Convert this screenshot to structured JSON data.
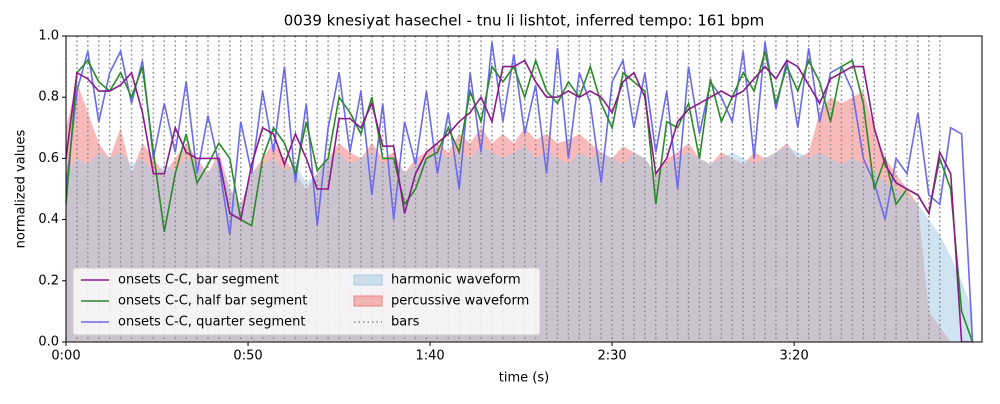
{
  "chart_data": {
    "type": "line",
    "title": "0039 knesiyat hasechel - tnu li lishtot, inferred tempo: 161 bpm",
    "x_label": "time (s)",
    "y_label": "normalized values",
    "xlim": [
      0,
      251.6
    ],
    "ylim": [
      0,
      1
    ],
    "xticks": [
      {
        "value": 0,
        "label": "0:00"
      },
      {
        "value": 50,
        "label": "0:50"
      },
      {
        "value": 100,
        "label": "1:40"
      },
      {
        "value": 150,
        "label": "2:30"
      },
      {
        "value": 200,
        "label": "3:20"
      }
    ],
    "yticks": [
      {
        "value": 0,
        "label": "0.0"
      },
      {
        "value": 0.2,
        "label": "0.2"
      },
      {
        "value": 0.4,
        "label": "0.4"
      },
      {
        "value": 0.6,
        "label": "0.6"
      },
      {
        "value": 0.8,
        "label": "0.8"
      },
      {
        "value": 1,
        "label": "1.0"
      }
    ],
    "legend": "lower left",
    "x": [
      0,
      3,
      6,
      9,
      12,
      15,
      18,
      21,
      24,
      27,
      30,
      33,
      36,
      39,
      42,
      45,
      48,
      51,
      54,
      57,
      60,
      63,
      66,
      69,
      72,
      75,
      78,
      81,
      84,
      87,
      90,
      93,
      96,
      99,
      102,
      105,
      108,
      111,
      114,
      117,
      120,
      123,
      126,
      129,
      132,
      135,
      138,
      141,
      144,
      147,
      150,
      153,
      156,
      159,
      162,
      165,
      168,
      171,
      174,
      177,
      180,
      183,
      186,
      189,
      192,
      195,
      198,
      201,
      204,
      207,
      210,
      213,
      216,
      219,
      222,
      225,
      228,
      231,
      234,
      237,
      240,
      243,
      246,
      249
    ],
    "series": [
      {
        "name": "onsets C-C, bar segment",
        "kind": "line",
        "color": "#8b1a8b",
        "values": [
          0.6,
          0.88,
          0.86,
          0.82,
          0.82,
          0.84,
          0.88,
          0.75,
          0.55,
          0.55,
          0.7,
          0.62,
          0.6,
          0.6,
          0.6,
          0.42,
          0.4,
          0.58,
          0.7,
          0.68,
          0.58,
          0.68,
          0.6,
          0.5,
          0.5,
          0.73,
          0.73,
          0.7,
          0.78,
          0.64,
          0.64,
          0.42,
          0.55,
          0.62,
          0.65,
          0.68,
          0.72,
          0.75,
          0.8,
          0.72,
          0.9,
          0.9,
          0.92,
          0.85,
          0.8,
          0.8,
          0.82,
          0.8,
          0.82,
          0.8,
          0.75,
          0.85,
          0.88,
          0.8,
          0.55,
          0.6,
          0.72,
          0.76,
          0.78,
          0.8,
          0.82,
          0.8,
          0.82,
          0.86,
          0.9,
          0.86,
          0.92,
          0.9,
          0.84,
          0.78,
          0.86,
          0.88,
          0.9,
          0.9,
          0.7,
          0.58,
          0.52,
          0.5,
          0.48,
          0.42,
          0.62,
          0.55,
          0.0,
          0.0
        ]
      },
      {
        "name": "onsets C-C, half bar segment",
        "kind": "line",
        "color": "#2a8a2a",
        "values": [
          0.45,
          0.88,
          0.92,
          0.85,
          0.82,
          0.88,
          0.8,
          0.9,
          0.62,
          0.36,
          0.55,
          0.68,
          0.52,
          0.58,
          0.65,
          0.6,
          0.4,
          0.38,
          0.6,
          0.7,
          0.65,
          0.55,
          0.72,
          0.56,
          0.6,
          0.8,
          0.75,
          0.68,
          0.8,
          0.6,
          0.6,
          0.45,
          0.5,
          0.6,
          0.62,
          0.7,
          0.62,
          0.82,
          0.72,
          0.9,
          0.85,
          0.9,
          0.8,
          0.92,
          0.82,
          0.78,
          0.85,
          0.8,
          0.9,
          0.78,
          0.7,
          0.88,
          0.85,
          0.82,
          0.45,
          0.72,
          0.7,
          0.78,
          0.6,
          0.86,
          0.72,
          0.8,
          0.88,
          0.82,
          0.95,
          0.78,
          0.9,
          0.82,
          0.92,
          0.85,
          0.72,
          0.9,
          0.92,
          0.78,
          0.5,
          0.6,
          0.45,
          0.5,
          0.48,
          0.42,
          0.6,
          0.5,
          0.1,
          0.0
        ]
      },
      {
        "name": "onsets C-C, quarter segment",
        "kind": "line",
        "color": "#6b6bea",
        "values": [
          0.5,
          0.82,
          0.95,
          0.72,
          0.88,
          0.95,
          0.78,
          0.92,
          0.6,
          0.78,
          0.62,
          0.85,
          0.55,
          0.74,
          0.58,
          0.35,
          0.72,
          0.55,
          0.82,
          0.62,
          0.9,
          0.52,
          0.78,
          0.38,
          0.7,
          0.88,
          0.62,
          0.82,
          0.48,
          0.78,
          0.4,
          0.72,
          0.58,
          0.82,
          0.55,
          0.75,
          0.5,
          0.88,
          0.62,
          0.98,
          0.72,
          0.94,
          0.68,
          0.84,
          0.55,
          0.96,
          0.6,
          0.88,
          0.78,
          0.52,
          0.85,
          0.92,
          0.7,
          0.88,
          0.62,
          0.82,
          0.5,
          0.9,
          0.68,
          0.85,
          0.8,
          0.72,
          0.95,
          0.6,
          0.98,
          0.76,
          0.92,
          0.7,
          0.96,
          0.72,
          0.88,
          0.9,
          0.82,
          0.6,
          0.52,
          0.4,
          0.6,
          0.55,
          0.75,
          0.48,
          0.45,
          0.7,
          0.68,
          0.0
        ]
      },
      {
        "name": "harmonic waveform",
        "kind": "area",
        "color": "#a9cce3",
        "values": [
          0.55,
          0.6,
          0.58,
          0.62,
          0.6,
          0.62,
          0.58,
          0.6,
          0.55,
          0.58,
          0.56,
          0.6,
          0.58,
          0.55,
          0.6,
          0.5,
          0.45,
          0.55,
          0.58,
          0.6,
          0.56,
          0.58,
          0.52,
          0.55,
          0.6,
          0.62,
          0.58,
          0.6,
          0.62,
          0.58,
          0.6,
          0.55,
          0.58,
          0.6,
          0.62,
          0.6,
          0.62,
          0.6,
          0.64,
          0.62,
          0.6,
          0.62,
          0.64,
          0.6,
          0.62,
          0.6,
          0.58,
          0.62,
          0.6,
          0.62,
          0.6,
          0.58,
          0.62,
          0.6,
          0.55,
          0.58,
          0.6,
          0.62,
          0.6,
          0.58,
          0.6,
          0.62,
          0.6,
          0.58,
          0.6,
          0.62,
          0.64,
          0.62,
          0.6,
          0.62,
          0.6,
          0.58,
          0.6,
          0.58,
          0.56,
          0.52,
          0.5,
          0.48,
          0.45,
          0.4,
          0.35,
          0.28,
          0.2,
          0.1
        ]
      },
      {
        "name": "percussive waveform",
        "kind": "area",
        "color": "#f08080",
        "values": [
          0.7,
          0.85,
          0.75,
          0.65,
          0.6,
          0.7,
          0.55,
          0.65,
          0.6,
          0.55,
          0.6,
          0.65,
          0.6,
          0.55,
          0.62,
          0.5,
          0.45,
          0.55,
          0.6,
          0.65,
          0.6,
          0.55,
          0.5,
          0.55,
          0.6,
          0.65,
          0.62,
          0.6,
          0.65,
          0.6,
          0.62,
          0.55,
          0.6,
          0.62,
          0.65,
          0.62,
          0.68,
          0.65,
          0.7,
          0.65,
          0.68,
          0.65,
          0.7,
          0.66,
          0.68,
          0.65,
          0.66,
          0.68,
          0.65,
          0.62,
          0.6,
          0.64,
          0.62,
          0.6,
          0.55,
          0.6,
          0.62,
          0.65,
          0.6,
          0.58,
          0.62,
          0.6,
          0.58,
          0.62,
          0.6,
          0.62,
          0.65,
          0.6,
          0.62,
          0.75,
          0.8,
          0.78,
          0.8,
          0.82,
          0.7,
          0.6,
          0.55,
          0.5,
          0.45,
          0.1,
          0.05,
          0.0,
          0.0,
          0.0
        ]
      },
      {
        "name": "bars",
        "kind": "vlines",
        "color": "#888888",
        "x": [
          0,
          3,
          6,
          9,
          12,
          15,
          18,
          21,
          24,
          27,
          30,
          33,
          36,
          39,
          42,
          45,
          48,
          51,
          54,
          57,
          60,
          63,
          66,
          69,
          72,
          75,
          78,
          81,
          84,
          87,
          90,
          93,
          96,
          99,
          102,
          105,
          108,
          111,
          114,
          117,
          120,
          123,
          126,
          129,
          132,
          135,
          138,
          141,
          144,
          147,
          150,
          153,
          156,
          159,
          162,
          165,
          168,
          171,
          174,
          177,
          180,
          183,
          186,
          189,
          192,
          195,
          198,
          201,
          204,
          207,
          210,
          213,
          216,
          219,
          222,
          225,
          228,
          231,
          234,
          237,
          240
        ]
      }
    ]
  }
}
